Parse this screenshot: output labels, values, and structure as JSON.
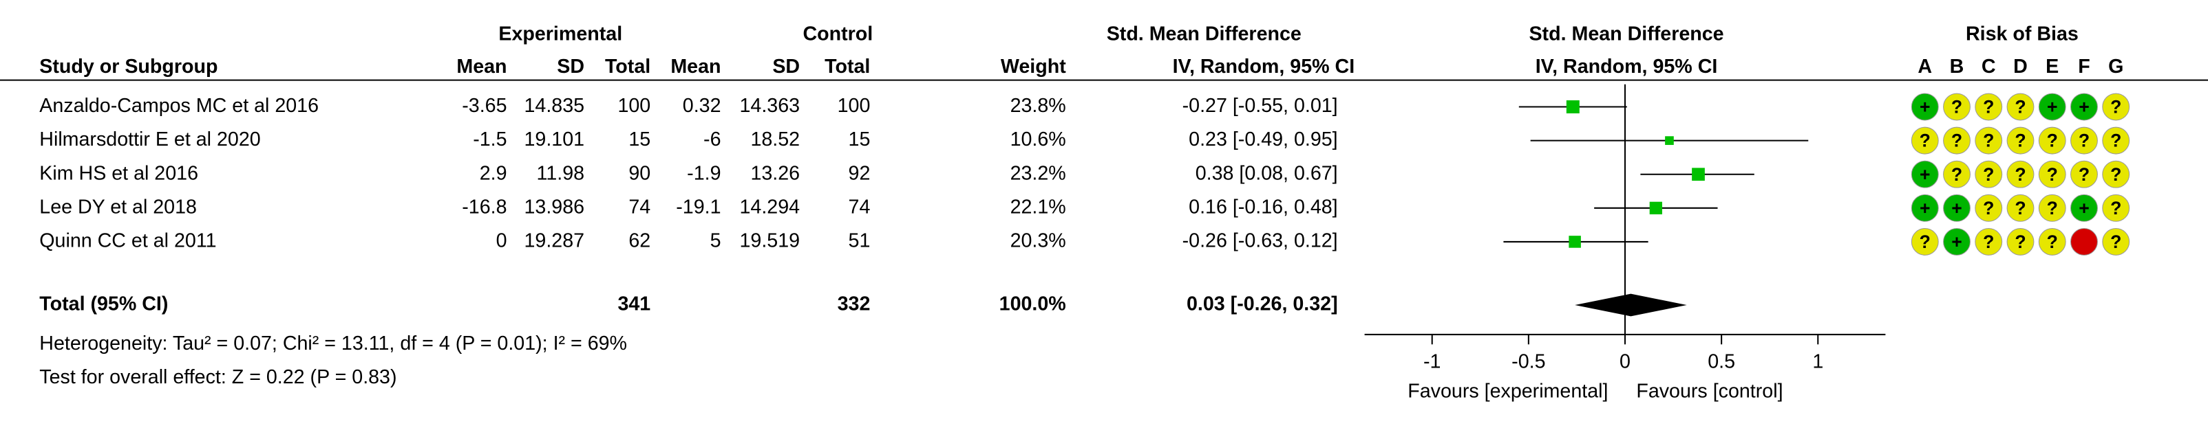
{
  "chart_data": {
    "type": "forest",
    "group_headers": {
      "experimental": "Experimental",
      "control": "Control",
      "smd_table": "Std. Mean Difference",
      "smd_plot": "Std. Mean Difference",
      "bias": "Risk of Bias"
    },
    "columns": [
      "Study or Subgroup",
      "Mean",
      "SD",
      "Total",
      "Mean",
      "SD",
      "Total",
      "Weight",
      "IV, Random, 95% CI",
      "IV, Random, 95% CI"
    ],
    "bias_domains": [
      "A",
      "B",
      "C",
      "D",
      "E",
      "F",
      "G"
    ],
    "bias_colors": {
      "low": "#00b400",
      "unclear": "#e6e600",
      "high": "#d40000"
    },
    "marker_color": "#00c000",
    "studies": [
      {
        "name": "Anzaldo-Campos MC et al 2016",
        "exp_mean": -3.65,
        "exp_sd": 14.835,
        "exp_total": 100,
        "ctrl_mean": 0.32,
        "ctrl_sd": 14.363,
        "ctrl_total": 100,
        "weight": 23.8,
        "weight_label": "23.8%",
        "smd": -0.27,
        "ci": [
          -0.55,
          0.01
        ],
        "ci_label": "-0.27 [-0.55, 0.01]",
        "bias": [
          "+",
          "?",
          "?",
          "?",
          "+",
          "+",
          "?"
        ]
      },
      {
        "name": "Hilmarsdottir E et al 2020",
        "exp_mean": -1.5,
        "exp_sd": 19.101,
        "exp_total": 15,
        "ctrl_mean": -6,
        "ctrl_sd": 18.52,
        "ctrl_total": 15,
        "weight": 10.6,
        "weight_label": "10.6%",
        "smd": 0.23,
        "ci": [
          -0.49,
          0.95
        ],
        "ci_label": "0.23 [-0.49, 0.95]",
        "bias": [
          "?",
          "?",
          "?",
          "?",
          "?",
          "?",
          "?"
        ]
      },
      {
        "name": "Kim HS et al 2016",
        "exp_mean": 2.9,
        "exp_sd": 11.98,
        "exp_total": 90,
        "ctrl_mean": -1.9,
        "ctrl_sd": 13.26,
        "ctrl_total": 92,
        "weight": 23.2,
        "weight_label": "23.2%",
        "smd": 0.38,
        "ci": [
          0.08,
          0.67
        ],
        "ci_label": "0.38 [0.08, 0.67]",
        "bias": [
          "+",
          "?",
          "?",
          "?",
          "?",
          "?",
          "?"
        ]
      },
      {
        "name": "Lee DY et al 2018",
        "exp_mean": -16.8,
        "exp_sd": 13.986,
        "exp_total": 74,
        "ctrl_mean": -19.1,
        "ctrl_sd": 14.294,
        "ctrl_total": 74,
        "weight": 22.1,
        "weight_label": "22.1%",
        "smd": 0.16,
        "ci": [
          -0.16,
          0.48
        ],
        "ci_label": "0.16 [-0.16, 0.48]",
        "bias": [
          "+",
          "+",
          "?",
          "?",
          "?",
          "+",
          "?"
        ]
      },
      {
        "name": "Quinn CC et al 2011",
        "exp_mean": 0,
        "exp_sd": 19.287,
        "exp_total": 62,
        "ctrl_mean": 5,
        "ctrl_sd": 19.519,
        "ctrl_total": 51,
        "weight": 20.3,
        "weight_label": "20.3%",
        "smd": -0.26,
        "ci": [
          -0.63,
          0.12
        ],
        "ci_label": "-0.26 [-0.63, 0.12]",
        "bias": [
          "?",
          "+",
          "?",
          "?",
          "?",
          null,
          "?"
        ]
      }
    ],
    "total": {
      "name": "Total (95% CI)",
      "exp_total": 341,
      "ctrl_total": 332,
      "weight": 100,
      "weight_label": "100.0%",
      "smd": 0.03,
      "ci": [
        -0.26,
        0.32
      ],
      "ci_label": "0.03 [-0.26, 0.32]"
    },
    "heterogeneity": "Heterogeneity: Tau² = 0.07; Chi² = 13.11, df = 4 (P = 0.01); I² = 69%",
    "overall_effect": "Test for overall effect: Z = 0.22 (P = 0.83)",
    "xlim": [
      -1.35,
      1.35
    ],
    "xticks": [
      -1,
      -0.5,
      0,
      0.5,
      1
    ],
    "x_label_left": "Favours [experimental]",
    "x_label_right": "Favours [control]"
  }
}
